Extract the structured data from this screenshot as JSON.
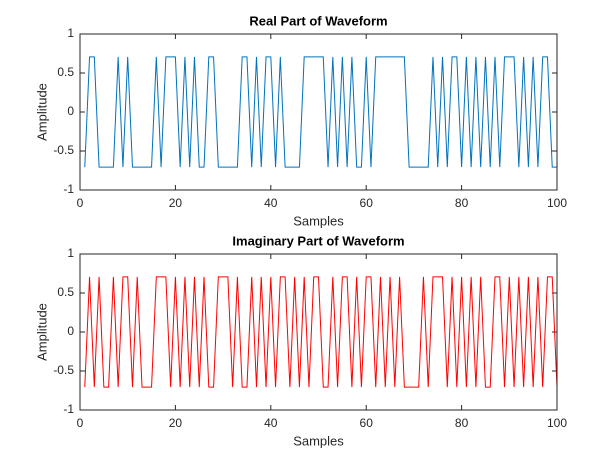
{
  "chart_data": [
    {
      "type": "line",
      "title": "Real Part of Waveform",
      "xlabel": "Samples",
      "ylabel": "Amplitude",
      "color": "#0072bd",
      "x": [
        1,
        2,
        3,
        4,
        5,
        6,
        7,
        8,
        9,
        10,
        11,
        12,
        13,
        14,
        15,
        16,
        17,
        18,
        19,
        20,
        21,
        22,
        23,
        24,
        25,
        26,
        27,
        28,
        29,
        30,
        31,
        32,
        33,
        34,
        35,
        36,
        37,
        38,
        39,
        40,
        41,
        42,
        43,
        44,
        45,
        46,
        47,
        48,
        49,
        50,
        51,
        52,
        53,
        54,
        55,
        56,
        57,
        58,
        59,
        60,
        61,
        62,
        63,
        64,
        65,
        66,
        67,
        68,
        69,
        70,
        71,
        72,
        73,
        74,
        75,
        76,
        77,
        78,
        79,
        80,
        81,
        82,
        83,
        84,
        85,
        86,
        87,
        88,
        89,
        90,
        91,
        92,
        93,
        94,
        95,
        96,
        97,
        98,
        99,
        100
      ],
      "values": [
        -0.7071,
        0.7071,
        0.7071,
        -0.7071,
        -0.7071,
        -0.7071,
        -0.7071,
        0.7071,
        -0.7071,
        0.7071,
        -0.7071,
        -0.7071,
        -0.7071,
        -0.7071,
        -0.7071,
        0.7071,
        -0.7071,
        0.7071,
        0.7071,
        0.7071,
        -0.7071,
        0.7071,
        -0.7071,
        0.7071,
        -0.7071,
        -0.7071,
        0.7071,
        0.7071,
        -0.7071,
        -0.7071,
        -0.7071,
        -0.7071,
        -0.7071,
        0.7071,
        0.7071,
        -0.7071,
        0.7071,
        -0.7071,
        0.7071,
        0.7071,
        -0.7071,
        0.7071,
        -0.7071,
        -0.7071,
        -0.7071,
        -0.7071,
        0.7071,
        0.7071,
        0.7071,
        0.7071,
        0.7071,
        -0.7071,
        0.7071,
        -0.7071,
        0.7071,
        -0.7071,
        0.7071,
        -0.7071,
        -0.7071,
        0.7071,
        -0.7071,
        0.7071,
        0.7071,
        0.7071,
        0.7071,
        0.7071,
        0.7071,
        0.7071,
        -0.7071,
        -0.7071,
        -0.7071,
        -0.7071,
        -0.7071,
        0.7071,
        -0.7071,
        0.7071,
        -0.7071,
        0.7071,
        0.7071,
        -0.7071,
        0.7071,
        -0.7071,
        0.7071,
        -0.7071,
        0.7071,
        -0.7071,
        0.7071,
        -0.7071,
        0.7071,
        0.7071,
        0.7071,
        -0.7071,
        0.7071,
        -0.7071,
        0.7071,
        -0.7071,
        0.7071,
        0.7071,
        -0.7071,
        -0.7071
      ],
      "xlim": [
        0,
        100
      ],
      "ylim": [
        -1,
        1
      ],
      "xticks": [
        0,
        20,
        40,
        60,
        80,
        100
      ],
      "yticks": [
        -1,
        -0.5,
        0,
        0.5,
        1
      ]
    },
    {
      "type": "line",
      "title": "Imaginary Part of Waveform",
      "xlabel": "Samples",
      "ylabel": "Amplitude",
      "color": "#ff0000",
      "x": [
        1,
        2,
        3,
        4,
        5,
        6,
        7,
        8,
        9,
        10,
        11,
        12,
        13,
        14,
        15,
        16,
        17,
        18,
        19,
        20,
        21,
        22,
        23,
        24,
        25,
        26,
        27,
        28,
        29,
        30,
        31,
        32,
        33,
        34,
        35,
        36,
        37,
        38,
        39,
        40,
        41,
        42,
        43,
        44,
        45,
        46,
        47,
        48,
        49,
        50,
        51,
        52,
        53,
        54,
        55,
        56,
        57,
        58,
        59,
        60,
        61,
        62,
        63,
        64,
        65,
        66,
        67,
        68,
        69,
        70,
        71,
        72,
        73,
        74,
        75,
        76,
        77,
        78,
        79,
        80,
        81,
        82,
        83,
        84,
        85,
        86,
        87,
        88,
        89,
        90,
        91,
        92,
        93,
        94,
        95,
        96,
        97,
        98,
        99,
        100
      ],
      "values": [
        -0.7071,
        0.7071,
        -0.7071,
        0.7071,
        -0.7071,
        -0.7071,
        0.7071,
        -0.7071,
        0.7071,
        0.7071,
        -0.7071,
        0.7071,
        -0.7071,
        -0.7071,
        -0.7071,
        0.7071,
        0.7071,
        0.7071,
        -0.7071,
        0.7071,
        -0.7071,
        0.7071,
        -0.7071,
        0.7071,
        -0.7071,
        0.7071,
        -0.7071,
        -0.7071,
        0.7071,
        0.7071,
        0.7071,
        -0.7071,
        0.7071,
        -0.7071,
        -0.7071,
        0.7071,
        -0.7071,
        0.7071,
        -0.7071,
        0.7071,
        -0.7071,
        0.7071,
        0.7071,
        -0.7071,
        0.7071,
        -0.7071,
        0.7071,
        -0.7071,
        0.7071,
        0.7071,
        -0.7071,
        -0.7071,
        0.7071,
        -0.7071,
        0.7071,
        0.7071,
        -0.7071,
        0.7071,
        -0.7071,
        0.7071,
        0.7071,
        -0.7071,
        0.7071,
        -0.7071,
        0.7071,
        -0.7071,
        0.7071,
        -0.7071,
        -0.7071,
        -0.7071,
        -0.7071,
        0.7071,
        -0.7071,
        0.7071,
        0.7071,
        0.7071,
        -0.7071,
        0.7071,
        -0.7071,
        0.7071,
        -0.7071,
        0.7071,
        -0.7071,
        0.7071,
        -0.7071,
        -0.7071,
        0.7071,
        0.7071,
        -0.7071,
        0.7071,
        -0.7071,
        0.7071,
        -0.7071,
        0.7071,
        -0.7071,
        0.7071,
        -0.7071,
        0.7071,
        0.7071,
        -0.7071
      ],
      "xlim": [
        0,
        100
      ],
      "ylim": [
        -1,
        1
      ],
      "xticks": [
        0,
        20,
        40,
        60,
        80,
        100
      ],
      "yticks": [
        -1,
        -0.5,
        0,
        0.5,
        1
      ]
    }
  ]
}
